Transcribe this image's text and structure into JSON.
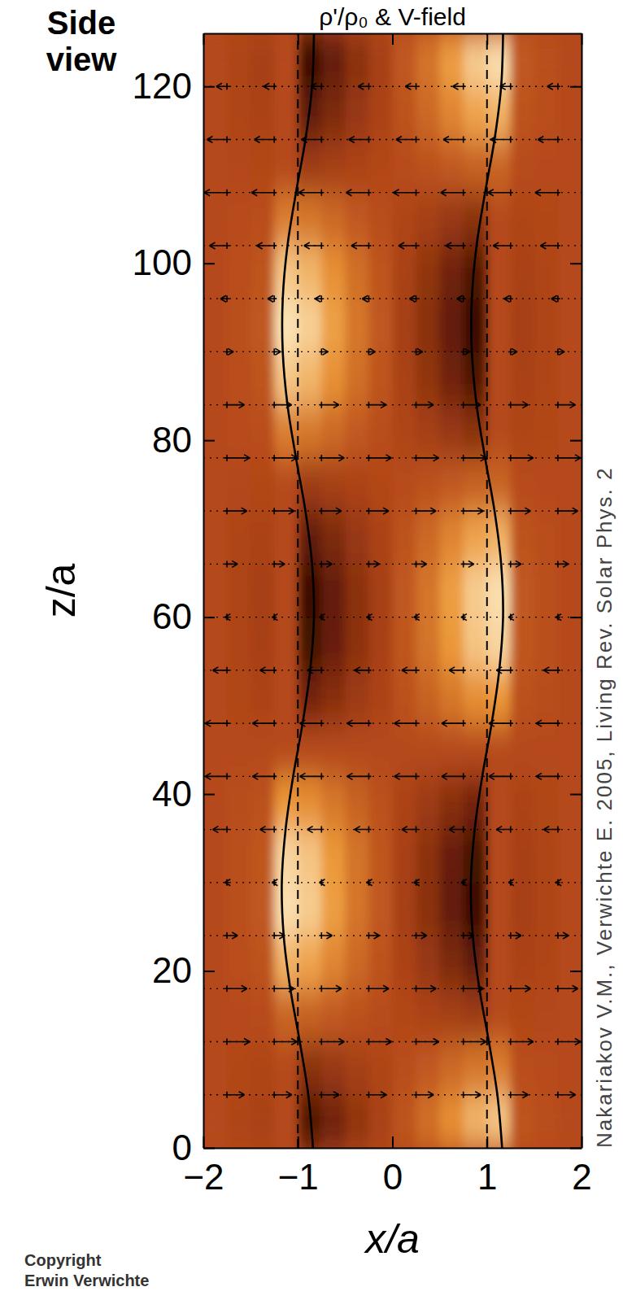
{
  "chart_data": {
    "type": "heatmap",
    "title": "ρ'/ρ₀ & V-field",
    "x_label": "x/a",
    "y_label": "z/a",
    "xlim": [
      -2,
      2
    ],
    "ylim": [
      0,
      126
    ],
    "xticks": [
      {
        "value": -2,
        "label": "−2"
      },
      {
        "value": -1,
        "label": "−1"
      },
      0,
      1,
      2
    ],
    "yticks": [
      0,
      20,
      40,
      60,
      80,
      100,
      120
    ],
    "annotations": [
      "Side view",
      "Copyright",
      "Erwin Verwichte",
      "Nakariakov V.M., Verwichte E. 2005, Living Rev. Solar Phys. 2"
    ],
    "cells": {
      "clim": [
        -1,
        1
      ],
      "x": [
        -1.875,
        -1.625,
        -1.375,
        -1.125,
        -0.875,
        -0.625,
        -0.375,
        -0.125,
        0.125,
        0.375,
        0.625,
        0.875,
        1.125,
        1.375,
        1.625,
        1.875
      ],
      "z": [
        3,
        9,
        15,
        21,
        27,
        33,
        39,
        45,
        51,
        57,
        63,
        69,
        75,
        81,
        87,
        93,
        99,
        105,
        111,
        117,
        123
      ],
      "values": [
        [
          0,
          -0.04,
          -0.08,
          0,
          -0.66,
          -0.46,
          -0.25,
          -0.08,
          0.08,
          0.25,
          0.46,
          0.66,
          0.75,
          0.08,
          0.04,
          0
        ],
        [
          0,
          -0.02,
          -0.04,
          0,
          -0.3,
          -0.21,
          -0.11,
          -0.04,
          0.04,
          0.11,
          0.21,
          0.3,
          0.34,
          0.04,
          0.02,
          0
        ],
        [
          0,
          0.01,
          0.02,
          0.18,
          0.16,
          0.11,
          0.06,
          0.02,
          -0.02,
          -0.06,
          -0.11,
          -0.16,
          0,
          -0.02,
          -0.01,
          0
        ],
        [
          0,
          0.04,
          0.07,
          0.64,
          0.57,
          0.39,
          0.21,
          0.07,
          -0.07,
          -0.21,
          -0.39,
          -0.57,
          0,
          -0.07,
          -0.04,
          0
        ],
        [
          0,
          0.05,
          0.1,
          0.88,
          0.78,
          0.54,
          0.29,
          0.1,
          -0.1,
          -0.29,
          -0.54,
          -0.78,
          0,
          -0.1,
          -0.05,
          0
        ],
        [
          0,
          0.05,
          0.09,
          0.83,
          0.74,
          0.51,
          0.28,
          0.09,
          -0.09,
          -0.28,
          -0.51,
          -0.74,
          0,
          -0.09,
          -0.05,
          0
        ],
        [
          0,
          0.03,
          0.06,
          0.5,
          0.45,
          0.31,
          0.17,
          0.06,
          -0.06,
          -0.17,
          -0.31,
          -0.45,
          0,
          -0.06,
          -0.03,
          0
        ],
        [
          0,
          0,
          0,
          0,
          0,
          0,
          0,
          0,
          0,
          0,
          0,
          0,
          0,
          0,
          0,
          0
        ],
        [
          0,
          -0.03,
          -0.06,
          0,
          -0.45,
          -0.31,
          -0.17,
          -0.06,
          0.06,
          0.17,
          0.31,
          0.45,
          0.5,
          0.06,
          0.03,
          0
        ],
        [
          0,
          -0.05,
          -0.09,
          0,
          -0.74,
          -0.51,
          -0.28,
          -0.09,
          0.09,
          0.28,
          0.51,
          0.74,
          0.83,
          0.09,
          0.05,
          0
        ],
        [
          0,
          -0.05,
          -0.1,
          0,
          -0.78,
          -0.54,
          -0.29,
          -0.1,
          0.1,
          0.29,
          0.54,
          0.78,
          0.88,
          0.1,
          0.05,
          0
        ],
        [
          0,
          -0.04,
          -0.07,
          0,
          -0.57,
          -0.39,
          -0.21,
          -0.07,
          0.07,
          0.21,
          0.39,
          0.57,
          0.64,
          0.07,
          0.04,
          0
        ],
        [
          0,
          -0.01,
          -0.02,
          0,
          -0.16,
          -0.11,
          -0.06,
          -0.02,
          0.02,
          0.06,
          0.11,
          0.16,
          0.18,
          0.02,
          0.01,
          0
        ],
        [
          0,
          0.02,
          0.04,
          0.34,
          0.3,
          0.21,
          0.11,
          0.04,
          -0.04,
          -0.11,
          -0.21,
          -0.3,
          0,
          -0.04,
          -0.02,
          0
        ],
        [
          0,
          0.04,
          0.08,
          0.75,
          0.66,
          0.46,
          0.25,
          0.08,
          -0.08,
          -0.25,
          -0.46,
          -0.66,
          0,
          -0.08,
          -0.04,
          0
        ],
        [
          0,
          0.05,
          0.1,
          0.9,
          0.8,
          0.55,
          0.3,
          0.1,
          -0.1,
          -0.3,
          -0.55,
          -0.8,
          0,
          -0.1,
          -0.05,
          0
        ],
        [
          0,
          0.04,
          0.08,
          0.75,
          0.66,
          0.46,
          0.25,
          0.08,
          -0.08,
          -0.25,
          -0.46,
          -0.66,
          0,
          -0.08,
          -0.04,
          0
        ],
        [
          0,
          0.02,
          0.04,
          0.34,
          0.3,
          0.21,
          0.11,
          0.04,
          -0.04,
          -0.11,
          -0.21,
          -0.3,
          0,
          -0.04,
          -0.02,
          0
        ],
        [
          0,
          -0.01,
          -0.02,
          0,
          -0.16,
          -0.11,
          -0.06,
          -0.02,
          0.02,
          0.06,
          0.11,
          0.16,
          0.18,
          0.02,
          0.01,
          0
        ],
        [
          0,
          -0.04,
          -0.07,
          0,
          -0.57,
          -0.39,
          -0.21,
          -0.07,
          0.07,
          0.21,
          0.39,
          0.57,
          0.64,
          0.07,
          0.04,
          0
        ],
        [
          0,
          -0.05,
          -0.1,
          0,
          -0.78,
          -0.54,
          -0.29,
          -0.1,
          0.1,
          0.29,
          0.54,
          0.78,
          0.88,
          0.1,
          0.05,
          0
        ]
      ]
    },
    "boundaries": {
      "z": [
        0,
        6,
        12,
        18,
        24,
        30,
        36,
        42,
        48,
        54,
        60,
        66,
        72,
        78,
        84,
        90,
        96,
        102,
        108,
        114,
        120,
        126
      ],
      "left": [
        -0.84,
        -0.89,
        -0.98,
        -1.08,
        -1.15,
        -1.17,
        -1.13,
        -1.05,
        -0.95,
        -0.87,
        -0.83,
        -0.85,
        -0.92,
        -1.02,
        -1.11,
        -1.16,
        -1.16,
        -1.11,
        -1.02,
        -0.92,
        -0.85,
        -0.83
      ],
      "right": [
        1.16,
        1.11,
        1.02,
        0.92,
        0.85,
        0.83,
        0.87,
        0.95,
        1.05,
        1.13,
        1.17,
        1.15,
        1.08,
        0.98,
        0.89,
        0.84,
        0.84,
        0.89,
        0.98,
        1.08,
        1.15,
        1.17
      ]
    },
    "reference_x": [
      -1,
      1
    ],
    "velocity": {
      "x": [
        -1.75,
        -1.25,
        -0.75,
        -0.25,
        0.25,
        0.75,
        1.25,
        1.75
      ],
      "z": [
        6,
        12,
        18,
        24,
        30,
        36,
        42,
        48,
        54,
        60,
        66,
        72,
        78,
        84,
        90,
        96,
        102,
        108,
        114,
        120
      ],
      "vx": [
        0.77,
        1.0,
        0.88,
        0.47,
        -0.1,
        -0.63,
        -0.96,
        -0.96,
        -0.63,
        -0.1,
        0.47,
        0.88,
        1.0,
        0.77,
        0.29,
        -0.29,
        -0.77,
        -1.0,
        -0.88,
        -0.47
      ]
    }
  }
}
